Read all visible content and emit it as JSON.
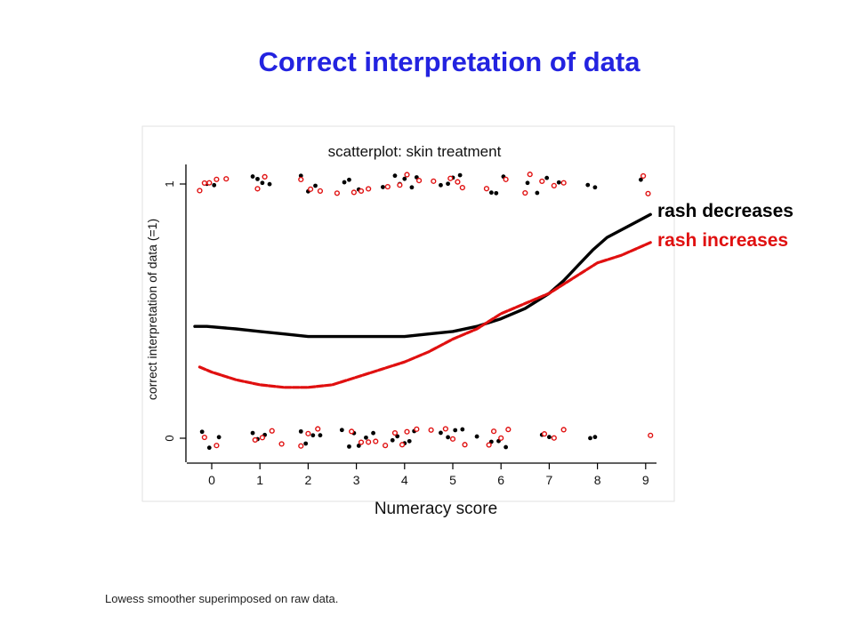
{
  "slide": {
    "title": "Correct interpretation of data",
    "footnote": "Lowess smoother superimposed on raw data."
  },
  "chart_data": {
    "type": "scatter",
    "title": "scatterplot: skin treatment",
    "xlabel": "Numeracy score",
    "ylabel": "correct interpretation of data (=1)",
    "x_ticks": [
      "0",
      "1",
      "2",
      "3",
      "4",
      "5",
      "6",
      "7",
      "8",
      "9"
    ],
    "y_ticks": [
      "0",
      "1"
    ],
    "xlim": [
      -0.55,
      9.25
    ],
    "ylim": [
      -0.1,
      1.1
    ],
    "grid": false,
    "legend_placement": "right",
    "series": [
      {
        "name": "rash decreases",
        "color": "#000000",
        "marker": "filled",
        "smoother": [
          [
            -0.35,
            0.44
          ],
          [
            -0.1,
            0.44
          ],
          [
            0.5,
            0.43
          ],
          [
            1,
            0.42
          ],
          [
            1.5,
            0.41
          ],
          [
            2,
            0.4
          ],
          [
            2.5,
            0.4
          ],
          [
            3,
            0.4
          ],
          [
            3.5,
            0.4
          ],
          [
            4,
            0.4
          ],
          [
            4.5,
            0.41
          ],
          [
            5,
            0.42
          ],
          [
            5.5,
            0.44
          ],
          [
            6,
            0.47
          ],
          [
            6.5,
            0.51
          ],
          [
            7,
            0.57
          ],
          [
            7.3,
            0.62
          ],
          [
            7.6,
            0.68
          ],
          [
            7.9,
            0.74
          ],
          [
            8.2,
            0.79
          ],
          [
            8.5,
            0.82
          ],
          [
            8.8,
            0.85
          ],
          [
            9.1,
            0.88
          ]
        ],
        "points_top": [
          [
            -0.1,
            1
          ],
          [
            0.05,
            1
          ],
          [
            0.85,
            1
          ],
          [
            0.95,
            1
          ],
          [
            1.05,
            1
          ],
          [
            1.2,
            1
          ],
          [
            1.85,
            1
          ],
          [
            2.0,
            1
          ],
          [
            2.15,
            1
          ],
          [
            2.75,
            1
          ],
          [
            2.85,
            1
          ],
          [
            3.05,
            1
          ],
          [
            3.55,
            1
          ],
          [
            3.8,
            1
          ],
          [
            3.9,
            1
          ],
          [
            4.0,
            1
          ],
          [
            4.15,
            1
          ],
          [
            4.25,
            1
          ],
          [
            4.75,
            1
          ],
          [
            4.9,
            1
          ],
          [
            5.0,
            1
          ],
          [
            5.15,
            1
          ],
          [
            5.8,
            1
          ],
          [
            5.9,
            1
          ],
          [
            6.05,
            1
          ],
          [
            6.55,
            1
          ],
          [
            6.75,
            1
          ],
          [
            6.95,
            1
          ],
          [
            7.2,
            1
          ],
          [
            7.8,
            1
          ],
          [
            7.95,
            1
          ],
          [
            8.9,
            1
          ]
        ],
        "points_bottom": [
          [
            -0.2,
            0
          ],
          [
            -0.05,
            0
          ],
          [
            0.15,
            0
          ],
          [
            0.85,
            0
          ],
          [
            0.95,
            0
          ],
          [
            1.1,
            0
          ],
          [
            1.85,
            0
          ],
          [
            1.95,
            0
          ],
          [
            2.1,
            0
          ],
          [
            2.25,
            0
          ],
          [
            2.7,
            0
          ],
          [
            2.85,
            0
          ],
          [
            2.95,
            0
          ],
          [
            3.05,
            0
          ],
          [
            3.2,
            0
          ],
          [
            3.35,
            0
          ],
          [
            3.75,
            0
          ],
          [
            3.85,
            0
          ],
          [
            4.0,
            0
          ],
          [
            4.1,
            0
          ],
          [
            4.2,
            0
          ],
          [
            4.75,
            0
          ],
          [
            4.9,
            0
          ],
          [
            5.05,
            0
          ],
          [
            5.2,
            0
          ],
          [
            5.5,
            0
          ],
          [
            5.8,
            0
          ],
          [
            5.95,
            0
          ],
          [
            6.1,
            0
          ],
          [
            6.85,
            0
          ],
          [
            7.0,
            0
          ],
          [
            7.85,
            0
          ],
          [
            7.95,
            0
          ]
        ]
      },
      {
        "name": "rash increases",
        "color": "#e01010",
        "marker": "open",
        "smoother": [
          [
            -0.25,
            0.28
          ],
          [
            0,
            0.26
          ],
          [
            0.5,
            0.23
          ],
          [
            1,
            0.21
          ],
          [
            1.5,
            0.2
          ],
          [
            2,
            0.2
          ],
          [
            2.5,
            0.21
          ],
          [
            3,
            0.24
          ],
          [
            3.5,
            0.27
          ],
          [
            4,
            0.3
          ],
          [
            4.5,
            0.34
          ],
          [
            5,
            0.39
          ],
          [
            5.5,
            0.43
          ],
          [
            6,
            0.49
          ],
          [
            6.5,
            0.53
          ],
          [
            7,
            0.57
          ],
          [
            7.5,
            0.63
          ],
          [
            8,
            0.69
          ],
          [
            8.5,
            0.72
          ],
          [
            9.1,
            0.77
          ]
        ],
        "points_top": [
          [
            -0.25,
            1
          ],
          [
            -0.15,
            1
          ],
          [
            -0.05,
            1
          ],
          [
            0.1,
            1
          ],
          [
            0.3,
            1
          ],
          [
            0.95,
            1
          ],
          [
            1.1,
            1
          ],
          [
            1.85,
            1
          ],
          [
            2.05,
            1
          ],
          [
            2.25,
            1
          ],
          [
            2.6,
            1
          ],
          [
            2.95,
            1
          ],
          [
            3.1,
            1
          ],
          [
            3.25,
            1
          ],
          [
            3.65,
            1
          ],
          [
            3.9,
            1
          ],
          [
            4.05,
            1
          ],
          [
            4.3,
            1
          ],
          [
            4.6,
            1
          ],
          [
            4.95,
            1
          ],
          [
            5.1,
            1
          ],
          [
            5.2,
            1
          ],
          [
            5.7,
            1
          ],
          [
            6.1,
            1
          ],
          [
            6.5,
            1
          ],
          [
            6.6,
            1
          ],
          [
            6.85,
            1
          ],
          [
            7.1,
            1
          ],
          [
            7.3,
            1
          ],
          [
            8.95,
            1
          ],
          [
            9.05,
            1
          ]
        ],
        "points_bottom": [
          [
            -0.15,
            0
          ],
          [
            0.1,
            0
          ],
          [
            0.9,
            0
          ],
          [
            1.05,
            0
          ],
          [
            1.25,
            0
          ],
          [
            1.45,
            0
          ],
          [
            1.85,
            0
          ],
          [
            2.0,
            0
          ],
          [
            2.2,
            0
          ],
          [
            2.9,
            0
          ],
          [
            3.1,
            0
          ],
          [
            3.25,
            0
          ],
          [
            3.4,
            0
          ],
          [
            3.6,
            0
          ],
          [
            3.8,
            0
          ],
          [
            3.95,
            0
          ],
          [
            4.05,
            0
          ],
          [
            4.25,
            0
          ],
          [
            4.55,
            0
          ],
          [
            4.85,
            0
          ],
          [
            5.0,
            0
          ],
          [
            5.25,
            0
          ],
          [
            5.75,
            0
          ],
          [
            5.85,
            0
          ],
          [
            6.0,
            0
          ],
          [
            6.15,
            0
          ],
          [
            6.9,
            0
          ],
          [
            7.1,
            0
          ],
          [
            7.3,
            0
          ],
          [
            9.1,
            0
          ]
        ]
      }
    ]
  }
}
